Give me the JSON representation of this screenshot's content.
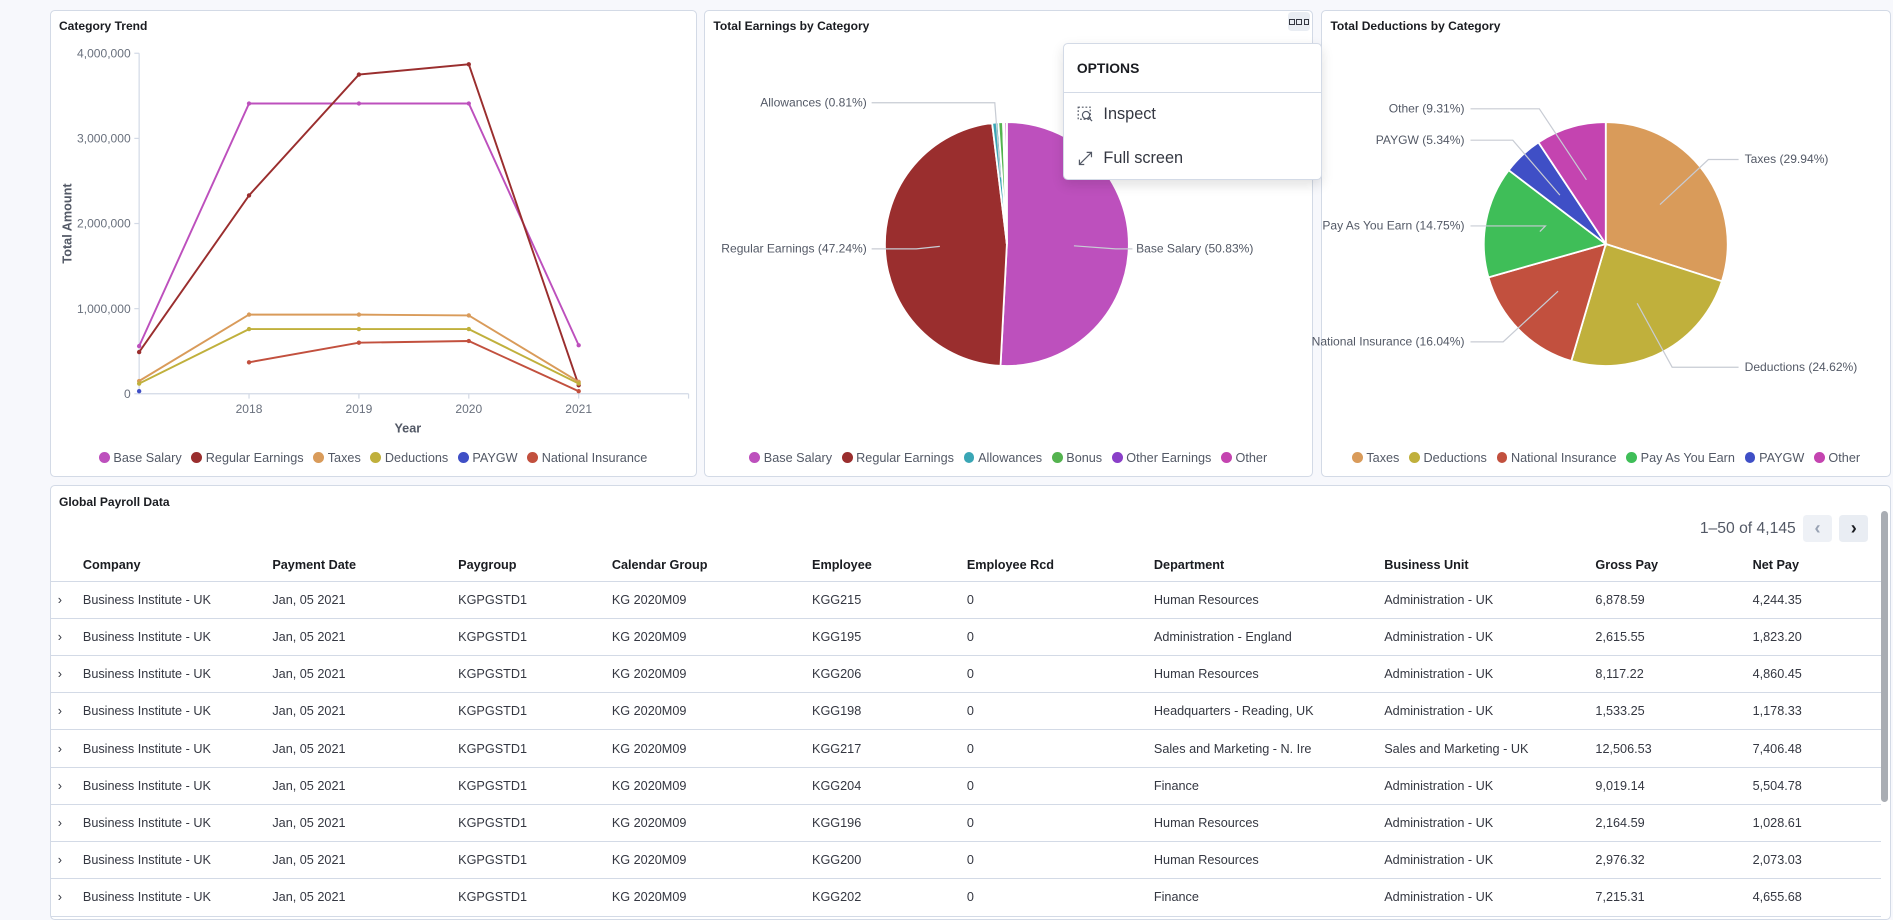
{
  "panels": {
    "trend_title": "Category Trend",
    "earnings_title": "Total Earnings by Category",
    "deductions_title": "Total Deductions by Category",
    "table_title": "Global Payroll Data"
  },
  "options_menu": {
    "header": "OPTIONS",
    "items": [
      {
        "label": "Inspect",
        "icon": "inspect-icon"
      },
      {
        "label": "Full screen",
        "icon": "fullscreen-icon"
      }
    ]
  },
  "chart_data": [
    {
      "type": "line",
      "title": "Category Trend",
      "xlabel": "Year",
      "ylabel": "Total Amount",
      "xlim": [
        2017,
        2022
      ],
      "ylim": [
        0,
        4000000
      ],
      "x_ticks": [
        "2018",
        "2019",
        "2020",
        "2021"
      ],
      "y_ticks": [
        "0",
        "1,000,000",
        "2,000,000",
        "3,000,000",
        "4,000,000"
      ],
      "grid": false,
      "legend": "bottom",
      "series": [
        {
          "name": "Base Salary",
          "color": "#bd50bd",
          "x": [
            2017,
            2018,
            2019,
            2020,
            2021
          ],
          "values": [
            560000,
            3410000,
            3410000,
            3410000,
            570000
          ]
        },
        {
          "name": "Regular Earnings",
          "color": "#9a2e2e",
          "x": [
            2017,
            2018,
            2019,
            2020,
            2021
          ],
          "values": [
            490000,
            2330000,
            3750000,
            3870000,
            100000
          ]
        },
        {
          "name": "Taxes",
          "color": "#d99b5a",
          "x": [
            2017,
            2018,
            2019,
            2020,
            2021
          ],
          "values": [
            150000,
            930000,
            930000,
            920000,
            140000
          ]
        },
        {
          "name": "Deductions",
          "color": "#c0b03c",
          "x": [
            2017,
            2018,
            2019,
            2020,
            2021
          ],
          "values": [
            120000,
            760000,
            760000,
            760000,
            120000
          ]
        },
        {
          "name": "PAYGW",
          "color": "#3f4fc6",
          "x": [
            2017
          ],
          "values": [
            30000
          ]
        },
        {
          "name": "National Insurance",
          "color": "#c2503e",
          "x": [
            2018,
            2019,
            2020,
            2021
          ],
          "values": [
            370000,
            600000,
            620000,
            30000
          ]
        }
      ]
    },
    {
      "type": "pie",
      "title": "Total Earnings by Category",
      "legend": "bottom",
      "slices": [
        {
          "name": "Base Salary",
          "value": 50.83,
          "label": "Base Salary (50.83%)",
          "color": "#bd50bd"
        },
        {
          "name": "Regular Earnings",
          "value": 47.24,
          "label": "Regular Earnings (47.24%)",
          "color": "#9a2e2e"
        },
        {
          "name": "Allowances",
          "value": 0.81,
          "label": "Allowances (0.81%)",
          "color": "#3aa6b5"
        },
        {
          "name": "Bonus",
          "value": 0.62,
          "label": "",
          "color": "#54b34f"
        },
        {
          "name": "Other Earnings",
          "value": 0.2,
          "label": "",
          "color": "#8a3fc8"
        },
        {
          "name": "Other",
          "value": 0.3,
          "label": "",
          "color": "#c444b0"
        }
      ]
    },
    {
      "type": "pie",
      "title": "Total Deductions by Category",
      "legend": "bottom",
      "slices": [
        {
          "name": "Taxes",
          "value": 29.94,
          "label": "Taxes (29.94%)",
          "color": "#d99b5a"
        },
        {
          "name": "Deductions",
          "value": 24.62,
          "label": "Deductions (24.62%)",
          "color": "#c0b03c"
        },
        {
          "name": "National Insurance",
          "value": 16.04,
          "label": "National Insurance (16.04%)",
          "color": "#c2503e"
        },
        {
          "name": "Pay As You Earn",
          "value": 14.75,
          "label": "Pay As You Earn (14.75%)",
          "color": "#3fbe58"
        },
        {
          "name": "PAYGW",
          "value": 5.34,
          "label": "PAYGW (5.34%)",
          "color": "#3f4fc6"
        },
        {
          "name": "Other",
          "value": 9.31,
          "label": "Other (9.31%)",
          "color": "#c444b0"
        }
      ]
    }
  ],
  "table": {
    "pagination": "1–50 of 4,145",
    "columns": [
      "Company",
      "Payment Date",
      "Paygroup",
      "Calendar Group",
      "Employee",
      "Employee Rcd",
      "Department",
      "Business Unit",
      "Gross Pay",
      "Net Pay"
    ],
    "rows": [
      [
        "Business Institute - UK",
        "Jan, 05 2021",
        "KGPGSTD1",
        "KG 2020M09",
        "KGG215",
        "0",
        "Human Resources",
        "Administration - UK",
        "6,878.59",
        "4,244.35"
      ],
      [
        "Business Institute - UK",
        "Jan, 05 2021",
        "KGPGSTD1",
        "KG 2020M09",
        "KGG195",
        "0",
        "Administration - England",
        "Administration - UK",
        "2,615.55",
        "1,823.20"
      ],
      [
        "Business Institute - UK",
        "Jan, 05 2021",
        "KGPGSTD1",
        "KG 2020M09",
        "KGG206",
        "0",
        "Human Resources",
        "Administration - UK",
        "8,117.22",
        "4,860.45"
      ],
      [
        "Business Institute - UK",
        "Jan, 05 2021",
        "KGPGSTD1",
        "KG 2020M09",
        "KGG198",
        "0",
        "Headquarters - Reading, UK",
        "Administration - UK",
        "1,533.25",
        "1,178.33"
      ],
      [
        "Business Institute - UK",
        "Jan, 05 2021",
        "KGPGSTD1",
        "KG 2020M09",
        "KGG217",
        "0",
        "Sales and Marketing - N. Ire",
        "Sales and Marketing - UK",
        "12,506.53",
        "7,406.48"
      ],
      [
        "Business Institute - UK",
        "Jan, 05 2021",
        "KGPGSTD1",
        "KG 2020M09",
        "KGG204",
        "0",
        "Finance",
        "Administration - UK",
        "9,019.14",
        "5,504.78"
      ],
      [
        "Business Institute - UK",
        "Jan, 05 2021",
        "KGPGSTD1",
        "KG 2020M09",
        "KGG196",
        "0",
        "Human Resources",
        "Administration - UK",
        "2,164.59",
        "1,028.61"
      ],
      [
        "Business Institute - UK",
        "Jan, 05 2021",
        "KGPGSTD1",
        "KG 2020M09",
        "KGG200",
        "0",
        "Human Resources",
        "Administration - UK",
        "2,976.32",
        "2,073.03"
      ],
      [
        "Business Institute - UK",
        "Jan, 05 2021",
        "KGPGSTD1",
        "KG 2020M09",
        "KGG202",
        "0",
        "Finance",
        "Administration - UK",
        "7,215.31",
        "4,655.68"
      ]
    ]
  }
}
